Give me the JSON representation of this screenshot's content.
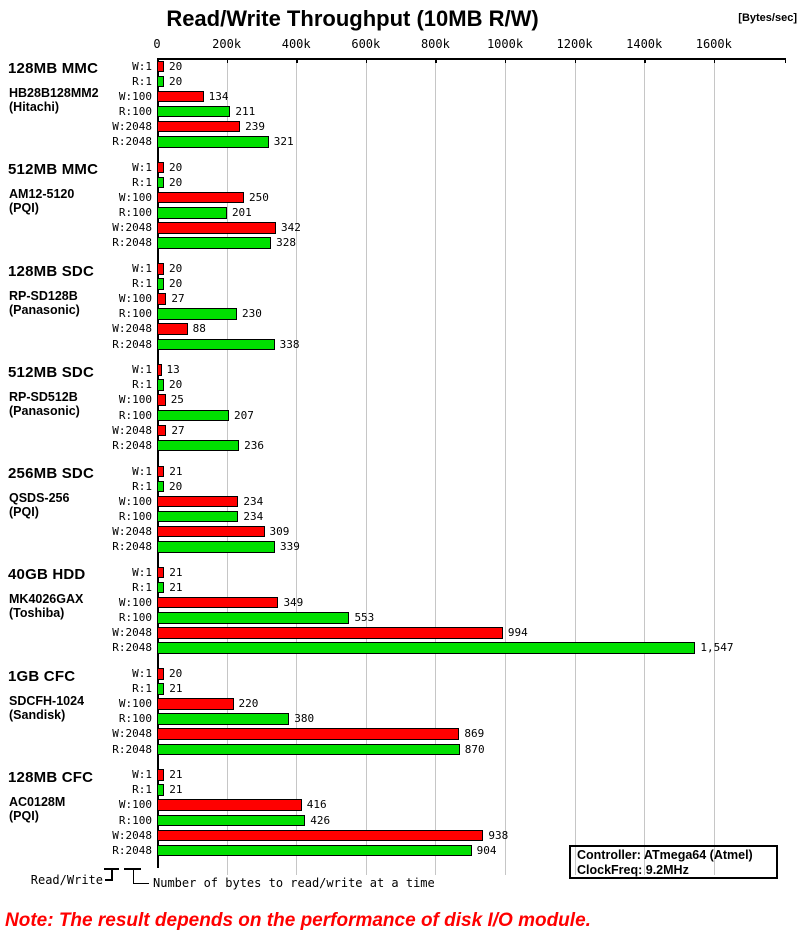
{
  "title": "Read/Write Throughput (10MB R/W)",
  "unit_label": "[Bytes/sec]",
  "note": "Note: The result depends on the performance of disk I/O module.",
  "info_box": {
    "line1": "Controller: ATmega64 (Atmel)",
    "line2": "ClockFreq: 9.2MHz"
  },
  "footnotes": {
    "left": "Read/Write",
    "right": "Number of bytes to read/write at a time"
  },
  "colors": {
    "write_bar": "#ff0000",
    "read_bar": "#00e000",
    "gridline": "#c6c6c6",
    "axis": "#000000",
    "note_text": "#ff0000"
  },
  "chart_data": {
    "type": "bar",
    "orientation": "horizontal",
    "title": "Read/Write Throughput (10MB R/W)",
    "value_unit": "Bytes/sec",
    "axis": {
      "position": "top",
      "tick_labels": [
        "0",
        "200k",
        "400k",
        "600k",
        "800k",
        "1000k",
        "1200k",
        "1400k",
        "1600k"
      ],
      "tick_values_kbytes": [
        0,
        200,
        400,
        600,
        800,
        1000,
        1200,
        1400,
        1600
      ],
      "max_kbytes": 1810,
      "gridlines": true
    },
    "row_labels": [
      "W:1",
      "R:1",
      "W:100",
      "R:100",
      "W:2048",
      "R:2048"
    ],
    "legend": {
      "write_color": "#ff0000",
      "read_color": "#00e000",
      "write_means": "Write throughput",
      "read_means": "Read throughput"
    },
    "groups": [
      {
        "name": "128MB MMC",
        "model": "HB28B128MM2",
        "maker": "(Hitachi)",
        "values_kbytes_per_sec": [
          20,
          20,
          134,
          211,
          239,
          321
        ],
        "value_labels": [
          "20",
          "20",
          "134",
          "211",
          "239",
          "321"
        ]
      },
      {
        "name": "512MB MMC",
        "model": "AM12-5120",
        "maker": "(PQI)",
        "values_kbytes_per_sec": [
          20,
          20,
          250,
          201,
          342,
          328
        ],
        "value_labels": [
          "20",
          "20",
          "250",
          "201",
          "342",
          "328"
        ]
      },
      {
        "name": "128MB SDC",
        "model": "RP-SD128B",
        "maker": "(Panasonic)",
        "values_kbytes_per_sec": [
          20,
          20,
          27,
          230,
          88,
          338
        ],
        "value_labels": [
          "20",
          "20",
          "27",
          "230",
          "88",
          "338"
        ]
      },
      {
        "name": "512MB SDC",
        "model": "RP-SD512B",
        "maker": "(Panasonic)",
        "values_kbytes_per_sec": [
          13,
          20,
          25,
          207,
          27,
          236
        ],
        "value_labels": [
          "13",
          "20",
          "25",
          "207",
          "27",
          "236"
        ]
      },
      {
        "name": "256MB SDC",
        "model": "QSDS-256",
        "maker": "(PQI)",
        "values_kbytes_per_sec": [
          21,
          20,
          234,
          234,
          309,
          339
        ],
        "value_labels": [
          "21",
          "20",
          "234",
          "234",
          "309",
          "339"
        ]
      },
      {
        "name": "40GB HDD",
        "model": "MK4026GAX",
        "maker": "(Toshiba)",
        "values_kbytes_per_sec": [
          21,
          21,
          349,
          553,
          994,
          1547
        ],
        "value_labels": [
          "21",
          "21",
          "349",
          "553",
          "994",
          "1,547"
        ]
      },
      {
        "name": "1GB CFC",
        "model": "SDCFH-1024",
        "maker": "(Sandisk)",
        "values_kbytes_per_sec": [
          20,
          21,
          220,
          380,
          869,
          870
        ],
        "value_labels": [
          "20",
          "21",
          "220",
          "380",
          "869",
          "870"
        ]
      },
      {
        "name": "128MB CFC",
        "model": "AC0128M",
        "maker": "(PQI)",
        "values_kbytes_per_sec": [
          21,
          21,
          416,
          426,
          938,
          904
        ],
        "value_labels": [
          "21",
          "21",
          "416",
          "426",
          "938",
          "904"
        ]
      }
    ]
  }
}
